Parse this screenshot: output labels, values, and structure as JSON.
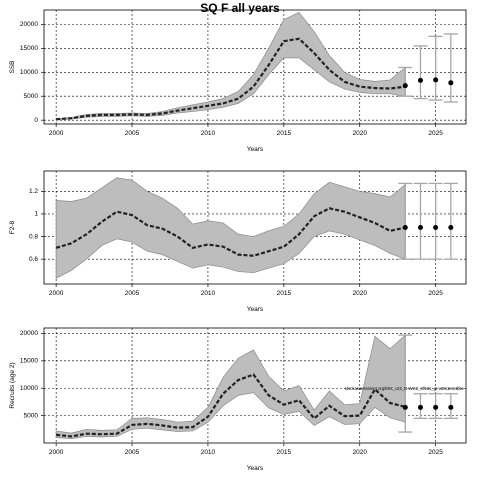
{
  "figure": {
    "title": "SQ F all years"
  },
  "colors": {
    "band": "#bdbdbd",
    "band_edge": "#8a8a8a",
    "line": "#222222",
    "point": "#000000",
    "errorbar": "#a6a6a6",
    "grid": "#000000"
  },
  "chart_data": [
    {
      "type": "line",
      "ylabel": "SSB",
      "xlabel": "Years",
      "xlim": [
        1999.2,
        2027
      ],
      "ylim": [
        -800,
        23000
      ],
      "xticks": [
        2000,
        2005,
        2010,
        2015,
        2020,
        2025
      ],
      "yticks": [
        0,
        5000,
        10000,
        15000,
        20000
      ],
      "grid": true,
      "x": [
        2000,
        2001,
        2002,
        2003,
        2004,
        2005,
        2006,
        2007,
        2008,
        2009,
        2010,
        2011,
        2012,
        2013,
        2014,
        2015,
        2016,
        2017,
        2018,
        2019,
        2020,
        2021,
        2022,
        2023
      ],
      "series": [
        {
          "role": "median",
          "values": [
            200,
            400,
            900,
            1100,
            1100,
            1200,
            1100,
            1400,
            2000,
            2500,
            3000,
            3500,
            4500,
            7000,
            11500,
            16500,
            17000,
            14000,
            10500,
            8000,
            7000,
            6700,
            6600,
            7000
          ]
        },
        {
          "role": "lower",
          "values": [
            100,
            250,
            600,
            800,
            800,
            900,
            800,
            1000,
            1500,
            1800,
            2200,
            2700,
            3500,
            5500,
            9500,
            13000,
            13000,
            10500,
            8000,
            6500,
            5800,
            5500,
            5500,
            5000
          ]
        },
        {
          "role": "upper",
          "values": [
            300,
            550,
            1200,
            1400,
            1400,
            1500,
            1400,
            1800,
            2600,
            3200,
            3800,
            4500,
            6000,
            9500,
            15000,
            21000,
            22500,
            18500,
            13500,
            10000,
            8500,
            8100,
            8400,
            11000
          ]
        }
      ],
      "projection": {
        "x": [
          2023,
          2024,
          2025,
          2026
        ],
        "values": [
          7200,
          8300,
          8400,
          7800
        ],
        "lower": [
          5000,
          4500,
          4200,
          3800
        ],
        "upper": [
          11000,
          15500,
          17500,
          18000
        ]
      }
    },
    {
      "type": "line",
      "ylabel": "F2-8",
      "xlabel": "Years",
      "xlim": [
        1999.2,
        2027
      ],
      "ylim": [
        0.38,
        1.38
      ],
      "xticks": [
        2000,
        2005,
        2010,
        2015,
        2020,
        2025
      ],
      "yticks": [
        0.6,
        0.8,
        1.0,
        1.2
      ],
      "grid": true,
      "x": [
        2000,
        2001,
        2002,
        2003,
        2004,
        2005,
        2006,
        2007,
        2008,
        2009,
        2010,
        2011,
        2012,
        2013,
        2014,
        2015,
        2016,
        2017,
        2018,
        2019,
        2020,
        2021,
        2022,
        2023
      ],
      "series": [
        {
          "role": "median",
          "values": [
            0.7,
            0.74,
            0.82,
            0.93,
            1.02,
            0.99,
            0.9,
            0.87,
            0.8,
            0.7,
            0.73,
            0.71,
            0.64,
            0.63,
            0.67,
            0.71,
            0.82,
            0.98,
            1.05,
            1.02,
            0.97,
            0.92,
            0.85,
            0.88
          ]
        },
        {
          "role": "lower",
          "values": [
            0.43,
            0.5,
            0.6,
            0.72,
            0.78,
            0.75,
            0.67,
            0.64,
            0.58,
            0.52,
            0.55,
            0.53,
            0.49,
            0.48,
            0.52,
            0.56,
            0.65,
            0.8,
            0.85,
            0.82,
            0.77,
            0.72,
            0.65,
            0.6
          ]
        },
        {
          "role": "upper",
          "values": [
            1.12,
            1.11,
            1.14,
            1.23,
            1.32,
            1.3,
            1.2,
            1.14,
            1.05,
            0.91,
            0.94,
            0.92,
            0.82,
            0.8,
            0.85,
            0.89,
            1.0,
            1.18,
            1.28,
            1.24,
            1.2,
            1.18,
            1.15,
            1.26
          ]
        }
      ],
      "projection": {
        "x": [
          2023,
          2024,
          2025,
          2026
        ],
        "values": [
          0.88,
          0.88,
          0.88,
          0.88
        ],
        "lower": [
          0.6,
          0.6,
          0.6,
          0.6
        ],
        "upper": [
          1.27,
          1.27,
          1.27,
          1.27
        ]
      }
    },
    {
      "type": "line",
      "ylabel": "Recruits (age 2)",
      "xlabel": "Years",
      "xlim": [
        1999.2,
        2027
      ],
      "ylim": [
        0,
        21000
      ],
      "xticks": [
        2000,
        2005,
        2010,
        2015,
        2020,
        2025
      ],
      "yticks": [
        5000,
        10000,
        15000,
        20000
      ],
      "grid": true,
      "annotation": "stockassessment.org/MIX_v22_N-WSC_rtf561_gr e38c2e54bbe",
      "x": [
        2000,
        2001,
        2002,
        2003,
        2004,
        2005,
        2006,
        2007,
        2008,
        2009,
        2010,
        2011,
        2012,
        2013,
        2014,
        2015,
        2016,
        2017,
        2018,
        2019,
        2020,
        2021,
        2022,
        2023
      ],
      "series": [
        {
          "role": "median",
          "values": [
            1500,
            1200,
            1700,
            1600,
            1700,
            3300,
            3500,
            3200,
            2800,
            2900,
            4800,
            9000,
            11500,
            12500,
            8700,
            7000,
            7800,
            4500,
            6800,
            4900,
            5000,
            9800,
            7300,
            6600
          ]
        },
        {
          "role": "lower",
          "values": [
            1000,
            800,
            1200,
            1100,
            1200,
            2500,
            2700,
            2400,
            2100,
            2200,
            3800,
            6800,
            8700,
            9200,
            6400,
            5200,
            5800,
            3200,
            4800,
            3400,
            3500,
            6500,
            4600,
            3800
          ]
        },
        {
          "role": "upper",
          "values": [
            2200,
            1800,
            2500,
            2300,
            2400,
            4500,
            4600,
            4300,
            3800,
            4000,
            6500,
            12000,
            15500,
            17000,
            12200,
            9500,
            10500,
            6000,
            9500,
            7000,
            7200,
            19500,
            17200,
            19700
          ]
        }
      ],
      "projection": {
        "x": [
          2023,
          2024,
          2025,
          2026
        ],
        "values": [
          6500,
          6500,
          6500,
          6500
        ],
        "lower": [
          2000,
          4500,
          4500,
          4500
        ],
        "upper": [
          19700,
          9000,
          9000,
          9000
        ]
      }
    }
  ]
}
